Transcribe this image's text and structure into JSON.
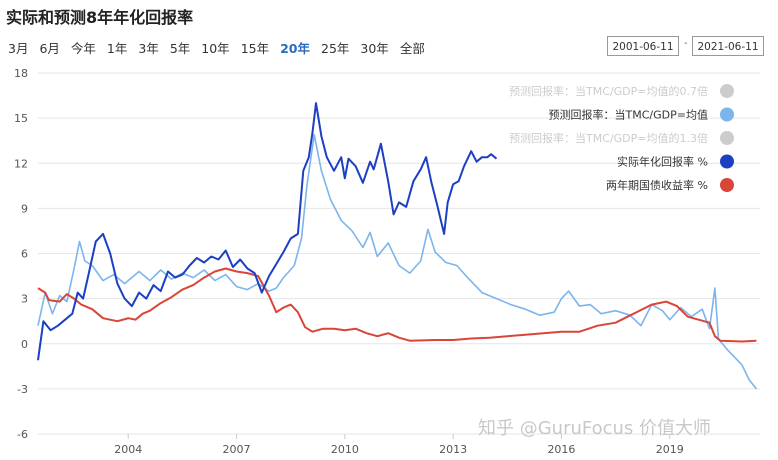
{
  "header": {
    "title": "实际和预测8年年化回报率"
  },
  "ranges": [
    "3月",
    "6月",
    "今年",
    "1年",
    "3年",
    "5年",
    "10年",
    "15年",
    "20年",
    "25年",
    "30年",
    "全部"
  ],
  "active_range": "20年",
  "date_from": "2001-06-11",
  "date_to": "2021-06-11",
  "date_sep": "-",
  "watermark": "知乎 @GuruFocus 价值大师",
  "chart_data": {
    "type": "line",
    "title": "实际和预测8年年化回报率",
    "xlabel": "",
    "ylabel": "",
    "x_unit": "year",
    "xlim": [
      2001.5,
      2021.5
    ],
    "ylim": [
      -6,
      18
    ],
    "yticks": [
      18,
      15,
      12,
      9,
      6,
      3,
      0,
      -3,
      -6
    ],
    "xticks": [
      2004,
      2007,
      2010,
      2013,
      2016,
      2019
    ],
    "grid": true,
    "legend_position": "top-right",
    "series": [
      {
        "name": "预测回报率：当TMC/GDP=均值的0.7倍",
        "color": "#cccccc",
        "visible": false,
        "points": []
      },
      {
        "name": "预测回报率：当TMC/GDP=均值",
        "color": "#7cb5ec",
        "visible": true,
        "points": [
          [
            2001.5,
            1.2
          ],
          [
            2001.7,
            3.4
          ],
          [
            2001.9,
            2.0
          ],
          [
            2002.1,
            3.2
          ],
          [
            2002.3,
            2.8
          ],
          [
            2002.5,
            5.0
          ],
          [
            2002.65,
            6.8
          ],
          [
            2002.8,
            5.5
          ],
          [
            2003.0,
            5.2
          ],
          [
            2003.3,
            4.2
          ],
          [
            2003.6,
            4.6
          ],
          [
            2003.9,
            4.0
          ],
          [
            2004.3,
            4.8
          ],
          [
            2004.6,
            4.2
          ],
          [
            2004.9,
            4.9
          ],
          [
            2005.2,
            4.3
          ],
          [
            2005.5,
            4.7
          ],
          [
            2005.8,
            4.4
          ],
          [
            2006.1,
            4.9
          ],
          [
            2006.4,
            4.2
          ],
          [
            2006.7,
            4.6
          ],
          [
            2007.0,
            3.8
          ],
          [
            2007.3,
            3.6
          ],
          [
            2007.6,
            4.0
          ],
          [
            2007.9,
            3.5
          ],
          [
            2008.1,
            3.7
          ],
          [
            2008.3,
            4.4
          ],
          [
            2008.6,
            5.2
          ],
          [
            2008.8,
            7.0
          ],
          [
            2008.95,
            10.5
          ],
          [
            2009.15,
            13.9
          ],
          [
            2009.35,
            11.5
          ],
          [
            2009.6,
            9.6
          ],
          [
            2009.9,
            8.2
          ],
          [
            2010.2,
            7.5
          ],
          [
            2010.5,
            6.4
          ],
          [
            2010.7,
            7.4
          ],
          [
            2010.9,
            5.8
          ],
          [
            2011.2,
            6.7
          ],
          [
            2011.5,
            5.2
          ],
          [
            2011.8,
            4.7
          ],
          [
            2012.1,
            5.5
          ],
          [
            2012.3,
            7.6
          ],
          [
            2012.5,
            6.1
          ],
          [
            2012.8,
            5.4
          ],
          [
            2013.1,
            5.2
          ],
          [
            2013.4,
            4.4
          ],
          [
            2013.8,
            3.4
          ],
          [
            2014.2,
            3.0
          ],
          [
            2014.6,
            2.6
          ],
          [
            2015.0,
            2.3
          ],
          [
            2015.4,
            1.9
          ],
          [
            2015.8,
            2.1
          ],
          [
            2016.0,
            3.0
          ],
          [
            2016.2,
            3.5
          ],
          [
            2016.5,
            2.5
          ],
          [
            2016.8,
            2.6
          ],
          [
            2017.1,
            2.0
          ],
          [
            2017.5,
            2.2
          ],
          [
            2017.9,
            1.9
          ],
          [
            2018.2,
            1.2
          ],
          [
            2018.5,
            2.6
          ],
          [
            2018.8,
            2.2
          ],
          [
            2019.0,
            1.6
          ],
          [
            2019.3,
            2.4
          ],
          [
            2019.6,
            1.8
          ],
          [
            2019.9,
            2.3
          ],
          [
            2020.1,
            1.0
          ],
          [
            2020.25,
            3.7
          ],
          [
            2020.35,
            0.3
          ],
          [
            2020.6,
            -0.4
          ],
          [
            2020.8,
            -0.9
          ],
          [
            2021.0,
            -1.4
          ],
          [
            2021.2,
            -2.4
          ],
          [
            2021.4,
            -3.0
          ]
        ]
      },
      {
        "name": "预测回报率：当TMC/GDP=均值的1.3倍",
        "color": "#cccccc",
        "visible": false,
        "points": []
      },
      {
        "name": "实际年化回报率 %",
        "color": "#1d3fc4",
        "visible": true,
        "points": [
          [
            2001.5,
            -1.1
          ],
          [
            2001.65,
            1.5
          ],
          [
            2001.85,
            0.9
          ],
          [
            2002.05,
            1.2
          ],
          [
            2002.25,
            1.6
          ],
          [
            2002.45,
            2.0
          ],
          [
            2002.6,
            3.4
          ],
          [
            2002.75,
            3.0
          ],
          [
            2002.9,
            4.6
          ],
          [
            2003.1,
            6.8
          ],
          [
            2003.3,
            7.3
          ],
          [
            2003.5,
            6.0
          ],
          [
            2003.7,
            4.0
          ],
          [
            2003.9,
            3.0
          ],
          [
            2004.1,
            2.5
          ],
          [
            2004.3,
            3.4
          ],
          [
            2004.5,
            3.0
          ],
          [
            2004.7,
            3.9
          ],
          [
            2004.9,
            3.5
          ],
          [
            2005.1,
            4.8
          ],
          [
            2005.3,
            4.4
          ],
          [
            2005.5,
            4.6
          ],
          [
            2005.7,
            5.2
          ],
          [
            2005.9,
            5.7
          ],
          [
            2006.1,
            5.4
          ],
          [
            2006.3,
            5.8
          ],
          [
            2006.5,
            5.6
          ],
          [
            2006.7,
            6.2
          ],
          [
            2006.9,
            5.1
          ],
          [
            2007.1,
            5.6
          ],
          [
            2007.3,
            5.0
          ],
          [
            2007.5,
            4.7
          ],
          [
            2007.7,
            3.4
          ],
          [
            2007.9,
            4.5
          ],
          [
            2008.1,
            5.3
          ],
          [
            2008.3,
            6.1
          ],
          [
            2008.5,
            7.0
          ],
          [
            2008.7,
            7.3
          ],
          [
            2008.85,
            11.5
          ],
          [
            2009.0,
            12.4
          ],
          [
            2009.1,
            14.0
          ],
          [
            2009.2,
            16.0
          ],
          [
            2009.35,
            13.8
          ],
          [
            2009.5,
            12.4
          ],
          [
            2009.7,
            11.5
          ],
          [
            2009.9,
            12.4
          ],
          [
            2010.0,
            11.0
          ],
          [
            2010.1,
            12.3
          ],
          [
            2010.3,
            11.8
          ],
          [
            2010.5,
            10.7
          ],
          [
            2010.7,
            12.1
          ],
          [
            2010.8,
            11.6
          ],
          [
            2011.0,
            13.3
          ],
          [
            2011.2,
            10.8
          ],
          [
            2011.35,
            8.6
          ],
          [
            2011.5,
            9.4
          ],
          [
            2011.7,
            9.1
          ],
          [
            2011.9,
            10.8
          ],
          [
            2012.1,
            11.6
          ],
          [
            2012.25,
            12.4
          ],
          [
            2012.4,
            10.7
          ],
          [
            2012.55,
            9.3
          ],
          [
            2012.75,
            7.3
          ],
          [
            2012.85,
            9.4
          ],
          [
            2013.0,
            10.6
          ],
          [
            2013.15,
            10.8
          ],
          [
            2013.3,
            11.8
          ],
          [
            2013.5,
            12.8
          ],
          [
            2013.65,
            12.1
          ],
          [
            2013.8,
            12.4
          ],
          [
            2013.95,
            12.4
          ],
          [
            2014.05,
            12.6
          ],
          [
            2014.2,
            12.3
          ]
        ]
      },
      {
        "name": "两年期国债收益率 %",
        "color": "#d94538",
        "visible": true,
        "points": [
          [
            2001.5,
            3.7
          ],
          [
            2001.7,
            3.4
          ],
          [
            2001.8,
            2.9
          ],
          [
            2002.1,
            2.8
          ],
          [
            2002.3,
            3.3
          ],
          [
            2002.5,
            3.0
          ],
          [
            2002.7,
            2.6
          ],
          [
            2003.0,
            2.3
          ],
          [
            2003.3,
            1.7
          ],
          [
            2003.7,
            1.5
          ],
          [
            2004.0,
            1.7
          ],
          [
            2004.2,
            1.6
          ],
          [
            2004.4,
            2.0
          ],
          [
            2004.6,
            2.2
          ],
          [
            2004.9,
            2.7
          ],
          [
            2005.2,
            3.1
          ],
          [
            2005.5,
            3.6
          ],
          [
            2005.8,
            3.9
          ],
          [
            2006.1,
            4.4
          ],
          [
            2006.4,
            4.8
          ],
          [
            2006.7,
            5.0
          ],
          [
            2007.0,
            4.8
          ],
          [
            2007.3,
            4.7
          ],
          [
            2007.6,
            4.5
          ],
          [
            2007.9,
            3.2
          ],
          [
            2008.1,
            2.1
          ],
          [
            2008.3,
            2.4
          ],
          [
            2008.5,
            2.6
          ],
          [
            2008.7,
            2.1
          ],
          [
            2008.9,
            1.1
          ],
          [
            2009.1,
            0.8
          ],
          [
            2009.4,
            1.0
          ],
          [
            2009.7,
            1.0
          ],
          [
            2010.0,
            0.9
          ],
          [
            2010.3,
            1.0
          ],
          [
            2010.6,
            0.7
          ],
          [
            2010.9,
            0.5
          ],
          [
            2011.2,
            0.7
          ],
          [
            2011.5,
            0.4
          ],
          [
            2011.8,
            0.2
          ],
          [
            2012.5,
            0.25
          ],
          [
            2013.0,
            0.25
          ],
          [
            2013.5,
            0.35
          ],
          [
            2014.0,
            0.4
          ],
          [
            2014.5,
            0.5
          ],
          [
            2015.0,
            0.6
          ],
          [
            2015.5,
            0.7
          ],
          [
            2016.0,
            0.8
          ],
          [
            2016.5,
            0.8
          ],
          [
            2017.0,
            1.2
          ],
          [
            2017.5,
            1.4
          ],
          [
            2018.0,
            2.0
          ],
          [
            2018.5,
            2.6
          ],
          [
            2018.9,
            2.8
          ],
          [
            2019.2,
            2.5
          ],
          [
            2019.5,
            1.8
          ],
          [
            2019.8,
            1.6
          ],
          [
            2020.1,
            1.4
          ],
          [
            2020.25,
            0.5
          ],
          [
            2020.4,
            0.2
          ],
          [
            2021.0,
            0.15
          ],
          [
            2021.4,
            0.2
          ]
        ]
      }
    ]
  }
}
